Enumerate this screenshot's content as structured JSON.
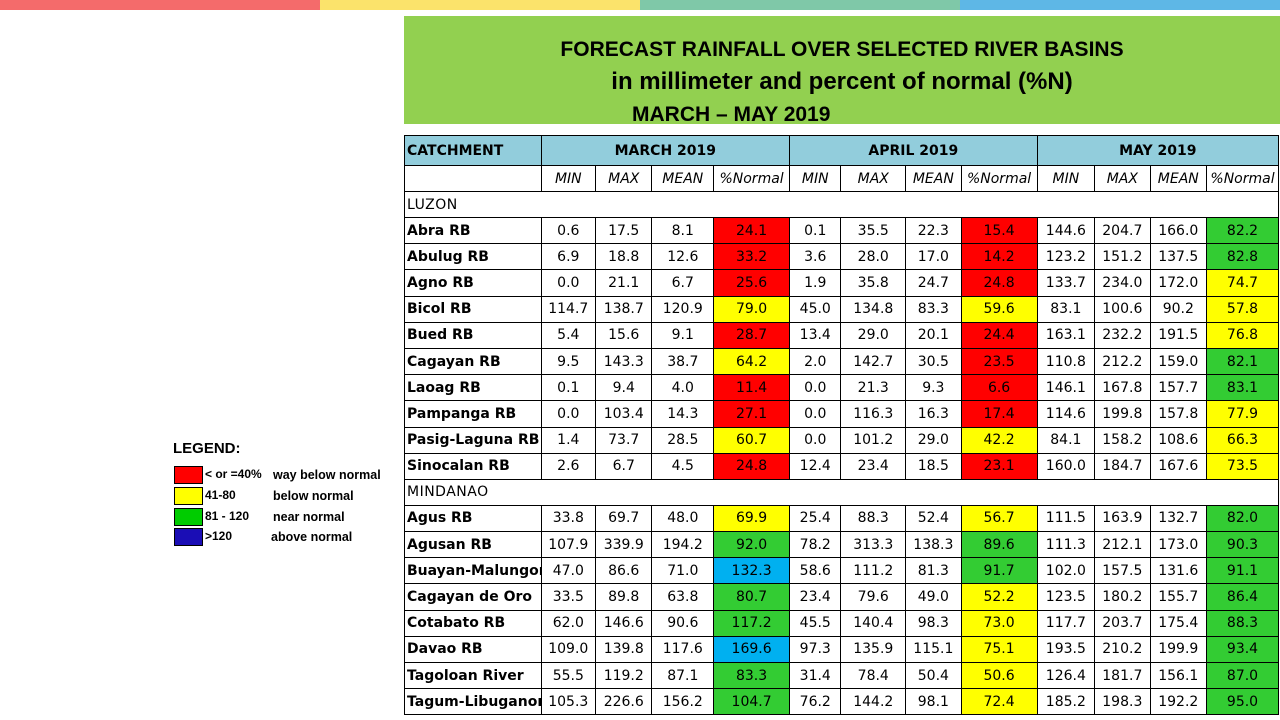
{
  "colors": {
    "topbar": [
      "#f46b6b",
      "#fbe36b",
      "#7fc8a8",
      "#5eb7e6"
    ],
    "title_bg": "#92d050",
    "header_bg": "#92cddc",
    "red": "#ff0000",
    "yellow": "#ffff00",
    "green": "#33cc33",
    "blue": "#00b0f0"
  },
  "title": {
    "line1": "FORECAST RAINFALL OVER SELECTED RIVER BASINS",
    "line2": "in millimeter  and percent of normal (%N)",
    "line3": "MARCH – MAY 2019"
  },
  "table": {
    "catchment_label": "CATCHMENT",
    "months": [
      "MARCH 2019",
      "APRIL 2019",
      "MAY 2019"
    ],
    "subheaders": [
      "MIN",
      "MAX",
      "MEAN",
      "%Normal"
    ],
    "regions": [
      {
        "name": "LUZON",
        "rows": [
          {
            "name": "Abra RB",
            "vals": [
              "0.6",
              "17.5",
              "8.1",
              "24.1",
              "0.1",
              "35.5",
              "22.3",
              "15.4",
              "144.6",
              "204.7",
              "166.0",
              "82.2"
            ],
            "cls": [
              "red",
              "red",
              "green"
            ]
          },
          {
            "name": "Abulug RB",
            "vals": [
              "6.9",
              "18.8",
              "12.6",
              "33.2",
              "3.6",
              "28.0",
              "17.0",
              "14.2",
              "123.2",
              "151.2",
              "137.5",
              "82.8"
            ],
            "cls": [
              "red",
              "red",
              "green"
            ]
          },
          {
            "name": "Agno RB",
            "vals": [
              "0.0",
              "21.1",
              "6.7",
              "25.6",
              "1.9",
              "35.8",
              "24.7",
              "24.8",
              "133.7",
              "234.0",
              "172.0",
              "74.7"
            ],
            "cls": [
              "red",
              "red",
              "yellow"
            ]
          },
          {
            "name": "Bicol RB",
            "vals": [
              "114.7",
              "138.7",
              "120.9",
              "79.0",
              "45.0",
              "134.8",
              "83.3",
              "59.6",
              "83.1",
              "100.6",
              "90.2",
              "57.8"
            ],
            "cls": [
              "yellow",
              "yellow",
              "yellow"
            ]
          },
          {
            "name": "Bued RB",
            "vals": [
              "5.4",
              "15.6",
              "9.1",
              "28.7",
              "13.4",
              "29.0",
              "20.1",
              "24.4",
              "163.1",
              "232.2",
              "191.5",
              "76.8"
            ],
            "cls": [
              "red",
              "red",
              "yellow"
            ]
          },
          {
            "name": "Cagayan RB",
            "vals": [
              "9.5",
              "143.3",
              "38.7",
              "64.2",
              "2.0",
              "142.7",
              "30.5",
              "23.5",
              "110.8",
              "212.2",
              "159.0",
              "82.1"
            ],
            "cls": [
              "yellow",
              "red",
              "green"
            ]
          },
          {
            "name": "Laoag RB",
            "vals": [
              "0.1",
              "9.4",
              "4.0",
              "11.4",
              "0.0",
              "21.3",
              "9.3",
              "6.6",
              "146.1",
              "167.8",
              "157.7",
              "83.1"
            ],
            "cls": [
              "red",
              "red",
              "green"
            ]
          },
          {
            "name": "Pampanga RB",
            "vals": [
              "0.0",
              "103.4",
              "14.3",
              "27.1",
              "0.0",
              "116.3",
              "16.3",
              "17.4",
              "114.6",
              "199.8",
              "157.8",
              "77.9"
            ],
            "cls": [
              "red",
              "red",
              "yellow"
            ]
          },
          {
            "name": "Pasig-Laguna RB",
            "vals": [
              "1.4",
              "73.7",
              "28.5",
              "60.7",
              "0.0",
              "101.2",
              "29.0",
              "42.2",
              "84.1",
              "158.2",
              "108.6",
              "66.3"
            ],
            "cls": [
              "yellow",
              "yellow",
              "yellow"
            ]
          },
          {
            "name": "Sinocalan RB",
            "vals": [
              "2.6",
              "6.7",
              "4.5",
              "24.8",
              "12.4",
              "23.4",
              "18.5",
              "23.1",
              "160.0",
              "184.7",
              "167.6",
              "73.5"
            ],
            "cls": [
              "red",
              "red",
              "yellow"
            ]
          }
        ]
      },
      {
        "name": "MINDANAO",
        "rows": [
          {
            "name": "Agus RB",
            "vals": [
              "33.8",
              "69.7",
              "48.0",
              "69.9",
              "25.4",
              "88.3",
              "52.4",
              "56.7",
              "111.5",
              "163.9",
              "132.7",
              "82.0"
            ],
            "cls": [
              "yellow",
              "yellow",
              "green"
            ]
          },
          {
            "name": "Agusan RB",
            "vals": [
              "107.9",
              "339.9",
              "194.2",
              "92.0",
              "78.2",
              "313.3",
              "138.3",
              "89.6",
              "111.3",
              "212.1",
              "173.0",
              "90.3"
            ],
            "cls": [
              "green",
              "green",
              "green"
            ]
          },
          {
            "name": "Buayan-Malungon",
            "vals": [
              "47.0",
              "86.6",
              "71.0",
              "132.3",
              "58.6",
              "111.2",
              "81.3",
              "91.7",
              "102.0",
              "157.5",
              "131.6",
              "91.1"
            ],
            "cls": [
              "blue",
              "green",
              "green"
            ]
          },
          {
            "name": "Cagayan de Oro",
            "vals": [
              "33.5",
              "89.8",
              "63.8",
              "80.7",
              "23.4",
              "79.6",
              "49.0",
              "52.2",
              "123.5",
              "180.2",
              "155.7",
              "86.4"
            ],
            "cls": [
              "green",
              "yellow",
              "green"
            ]
          },
          {
            "name": "Cotabato RB",
            "vals": [
              "62.0",
              "146.6",
              "90.6",
              "117.2",
              "45.5",
              "140.4",
              "98.3",
              "73.0",
              "117.7",
              "203.7",
              "175.4",
              "88.3"
            ],
            "cls": [
              "green",
              "yellow",
              "green"
            ]
          },
          {
            "name": "Davao RB",
            "vals": [
              "109.0",
              "139.8",
              "117.6",
              "169.6",
              "97.3",
              "135.9",
              "115.1",
              "75.1",
              "193.5",
              "210.2",
              "199.9",
              "93.4"
            ],
            "cls": [
              "blue",
              "yellow",
              "green"
            ]
          },
          {
            "name": "Tagoloan River",
            "vals": [
              "55.5",
              "119.2",
              "87.1",
              "83.3",
              "31.4",
              "78.4",
              "50.4",
              "50.6",
              "126.4",
              "181.7",
              "156.1",
              "87.0"
            ],
            "cls": [
              "green",
              "yellow",
              "green"
            ]
          },
          {
            "name": "Tagum-Libuganon",
            "vals": [
              "105.3",
              "226.6",
              "156.2",
              "104.7",
              "76.2",
              "144.2",
              "98.1",
              "72.4",
              "185.2",
              "198.3",
              "192.2",
              "95.0"
            ],
            "cls": [
              "green",
              "yellow",
              "green"
            ]
          }
        ]
      }
    ]
  },
  "legend": {
    "title": "LEGEND:",
    "items": [
      {
        "range": "< or =40%",
        "label": "way below normal",
        "color": "#ff0000"
      },
      {
        "range": "41-80",
        "label": "below normal",
        "color": "#ffff00"
      },
      {
        "range": "81 - 120",
        "label": "near normal",
        "color": "#00cc00"
      },
      {
        "range": ">120",
        "label": "above normal",
        "color": "#1a0db5"
      }
    ]
  }
}
